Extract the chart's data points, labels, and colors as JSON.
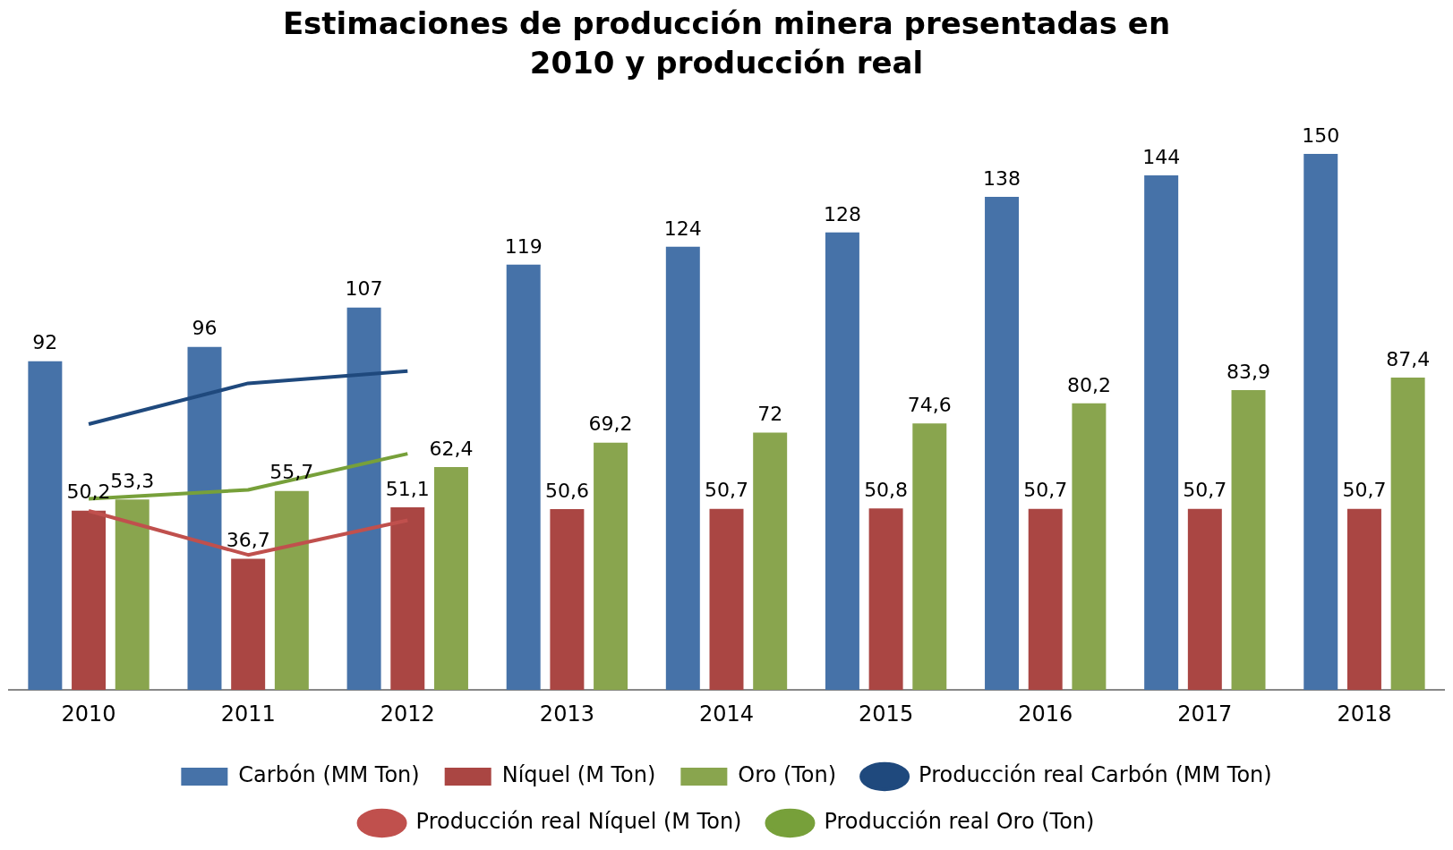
{
  "chart_data": {
    "type": "bar",
    "title": "Estimaciones de producción minera presentadas en 2010 y producción real",
    "categories": [
      "2010",
      "2011",
      "2012",
      "2013",
      "2014",
      "2015",
      "2016",
      "2017",
      "2018"
    ],
    "grid": false,
    "legend": "bottom",
    "series": [
      {
        "name": "Carbón (MM Ton)",
        "color": "#4672a8",
        "values": [
          92,
          96,
          107,
          119,
          124,
          128,
          138,
          144,
          150
        ],
        "value_labels": [
          "92",
          "96",
          "107",
          "119",
          "124",
          "128",
          "138",
          "144",
          "150"
        ]
      },
      {
        "name": "Níquel (M Ton)",
        "color": "#aa4643",
        "values": [
          50.2,
          36.7,
          51.1,
          50.6,
          50.7,
          50.8,
          50.7,
          50.7,
          50.7
        ],
        "value_labels": [
          "50,2",
          "36,7",
          "51,1",
          "50,6",
          "50,7",
          "50,8",
          "50,7",
          "50,7",
          "50,7"
        ]
      },
      {
        "name": "Oro (Ton)",
        "color": "#89a54e",
        "values": [
          53.3,
          55.7,
          62.4,
          69.2,
          72,
          74.6,
          80.2,
          83.9,
          87.4
        ],
        "value_labels": [
          "53,3",
          "55,7",
          "62,4",
          "69,2",
          "72",
          "74,6",
          "80,2",
          "83,9",
          "87,4"
        ]
      },
      {
        "name": "Producción real Carbón (MM Ton)",
        "type": "line",
        "color": "#1f497d",
        "values": [
          74.4,
          85.8,
          89.2,
          null,
          null,
          null,
          null,
          null,
          null
        ]
      },
      {
        "name": "Producción real Níquel (M Ton)",
        "type": "line",
        "color": "#c0504d",
        "values": [
          50.1,
          37.8,
          47.5,
          null,
          null,
          null,
          null,
          null,
          null
        ]
      },
      {
        "name": "Producción real Oro (Ton)",
        "type": "line",
        "color": "#77a03a",
        "values": [
          53.5,
          56,
          66.1,
          null,
          null,
          null,
          null,
          null,
          null
        ]
      }
    ]
  }
}
